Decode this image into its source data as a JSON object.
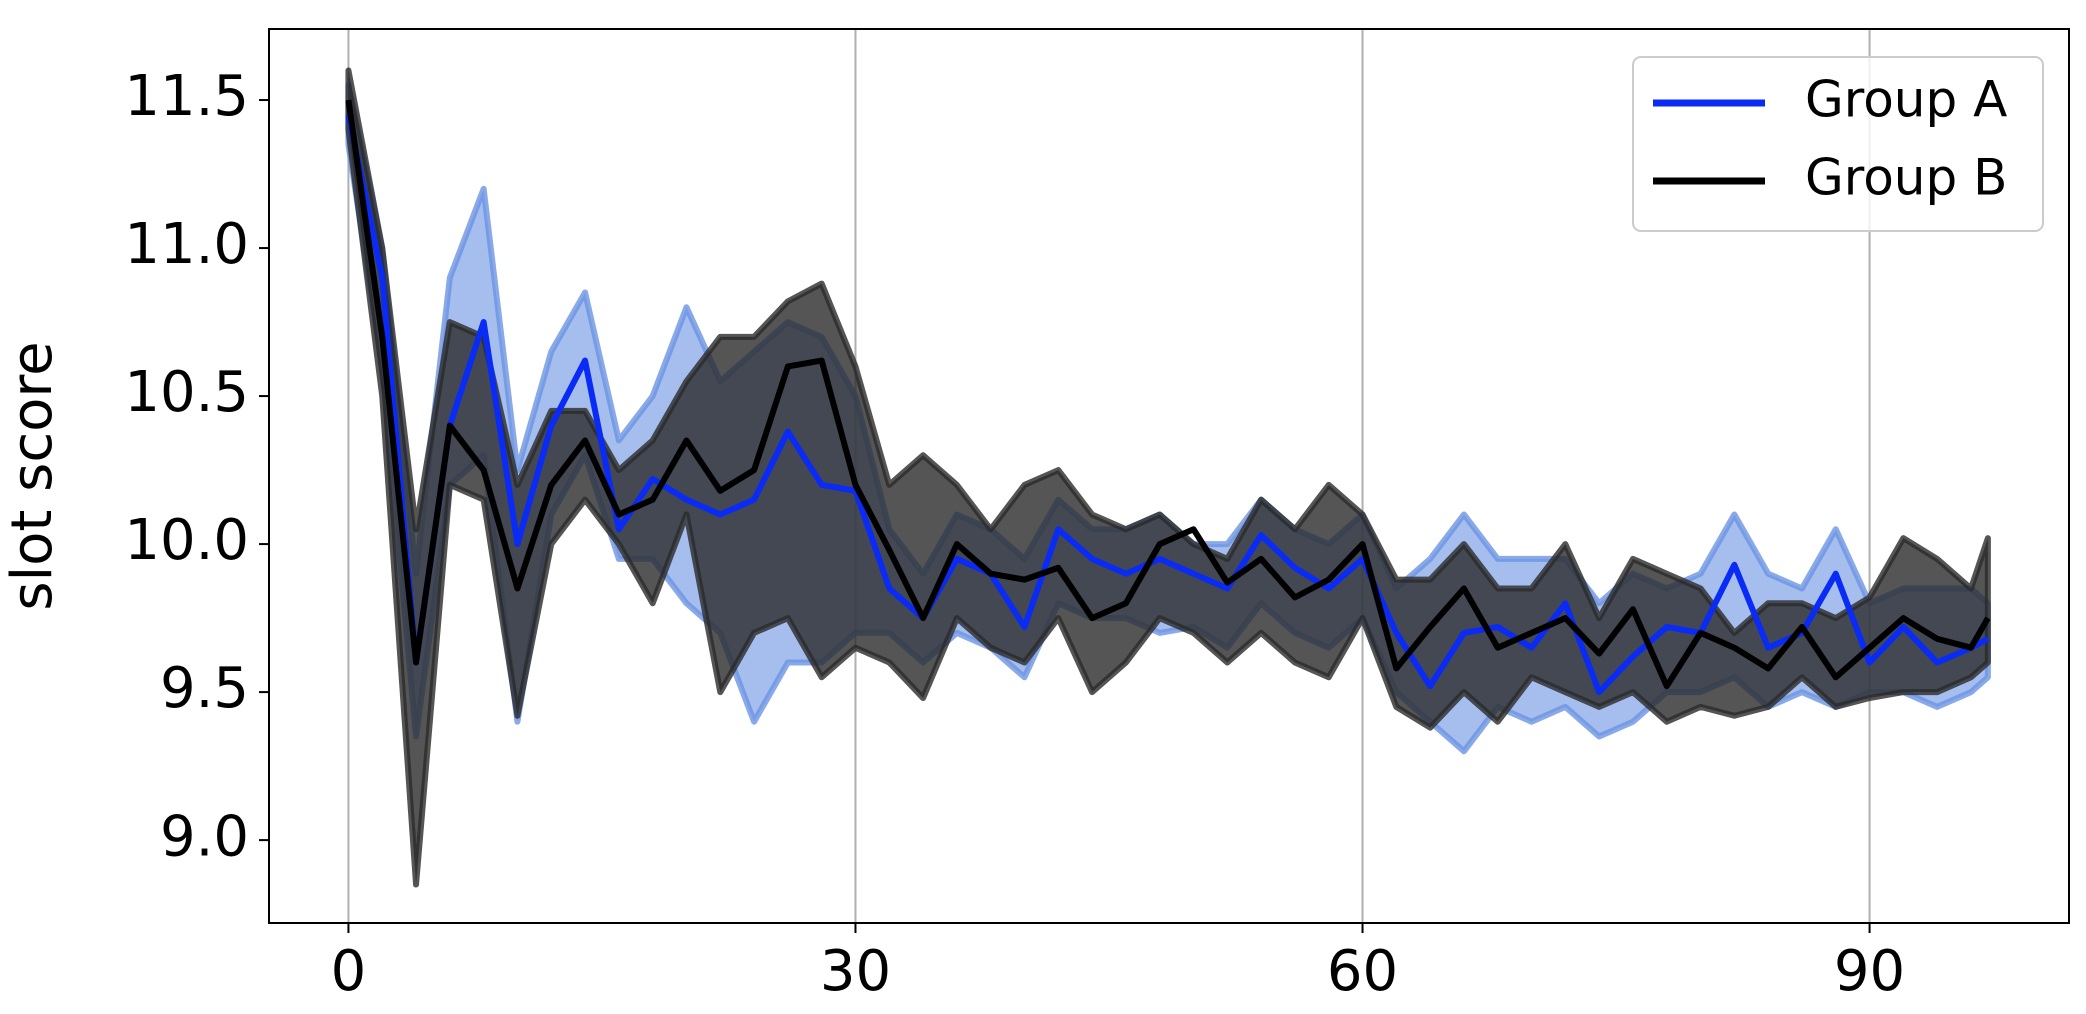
{
  "chart_data": {
    "type": "line",
    "y_label": "slot score",
    "x": [
      0,
      2,
      4,
      6,
      8,
      10,
      12,
      14,
      16,
      18,
      20,
      22,
      24,
      26,
      28,
      30,
      32,
      34,
      36,
      38,
      40,
      42,
      44,
      46,
      48,
      50,
      52,
      54,
      56,
      58,
      60,
      62,
      64,
      66,
      68,
      70,
      72,
      74,
      76,
      78,
      80,
      82,
      84,
      86,
      88,
      90,
      92,
      94,
      96,
      97
    ],
    "series": [
      {
        "name": "Group A",
        "color": "#0a2bf5",
        "band_color": "#6b93e3",
        "values": [
          11.45,
          10.9,
          9.6,
          10.4,
          10.75,
          10.0,
          10.4,
          10.62,
          10.05,
          10.22,
          10.15,
          10.1,
          10.15,
          10.38,
          10.2,
          10.18,
          9.85,
          9.75,
          9.95,
          9.9,
          9.72,
          10.05,
          9.95,
          9.9,
          9.95,
          9.9,
          9.85,
          10.03,
          9.92,
          9.85,
          9.95,
          9.7,
          9.52,
          9.7,
          9.72,
          9.65,
          9.8,
          9.5,
          9.62,
          9.72,
          9.7,
          9.93,
          9.65,
          9.7,
          9.9,
          9.6,
          9.72,
          9.6,
          9.65,
          9.68
        ],
        "lower": [
          11.35,
          10.6,
          9.35,
          10.2,
          10.3,
          9.4,
          10.1,
          10.3,
          9.95,
          9.95,
          9.8,
          9.7,
          9.4,
          9.6,
          9.6,
          9.7,
          9.7,
          9.6,
          9.7,
          9.65,
          9.55,
          9.8,
          9.75,
          9.75,
          9.7,
          9.72,
          9.65,
          9.8,
          9.7,
          9.65,
          9.75,
          9.5,
          9.4,
          9.3,
          9.45,
          9.4,
          9.45,
          9.35,
          9.4,
          9.5,
          9.5,
          9.55,
          9.45,
          9.5,
          9.45,
          9.5,
          9.5,
          9.45,
          9.5,
          9.55
        ],
        "upper": [
          11.55,
          11.0,
          9.9,
          10.9,
          11.2,
          10.25,
          10.65,
          10.85,
          10.35,
          10.5,
          10.8,
          10.55,
          10.65,
          10.75,
          10.7,
          10.5,
          10.05,
          9.9,
          10.1,
          10.05,
          9.95,
          10.15,
          10.05,
          10.05,
          10.1,
          10.0,
          10.0,
          10.15,
          10.05,
          10.0,
          10.1,
          9.85,
          9.95,
          10.1,
          9.95,
          9.95,
          9.95,
          9.8,
          9.9,
          9.85,
          9.9,
          10.1,
          9.9,
          9.85,
          10.05,
          9.8,
          9.85,
          9.85,
          9.85,
          9.8
        ]
      },
      {
        "name": "Group B",
        "color": "#000000",
        "band_color": "#2a2a2a",
        "values": [
          11.5,
          10.7,
          9.6,
          10.4,
          10.25,
          9.85,
          10.2,
          10.35,
          10.1,
          10.15,
          10.35,
          10.18,
          10.25,
          10.6,
          10.62,
          10.2,
          9.98,
          9.75,
          10.0,
          9.9,
          9.88,
          9.92,
          9.75,
          9.8,
          10.0,
          10.05,
          9.87,
          9.95,
          9.82,
          9.88,
          10.0,
          9.58,
          9.72,
          9.85,
          9.65,
          9.7,
          9.75,
          9.63,
          9.78,
          9.52,
          9.7,
          9.65,
          9.58,
          9.72,
          9.55,
          9.65,
          9.75,
          9.68,
          9.65,
          9.75
        ],
        "lower": [
          11.4,
          10.5,
          8.85,
          10.2,
          10.15,
          9.42,
          10.0,
          10.15,
          10.0,
          9.8,
          10.1,
          9.5,
          9.7,
          9.75,
          9.55,
          9.65,
          9.6,
          9.48,
          9.75,
          9.65,
          9.6,
          9.75,
          9.5,
          9.6,
          9.75,
          9.7,
          9.6,
          9.7,
          9.6,
          9.55,
          9.75,
          9.45,
          9.38,
          9.5,
          9.4,
          9.55,
          9.5,
          9.45,
          9.5,
          9.4,
          9.45,
          9.42,
          9.45,
          9.55,
          9.45,
          9.48,
          9.5,
          9.5,
          9.55,
          9.6
        ],
        "upper": [
          11.6,
          11.0,
          10.05,
          10.75,
          10.7,
          10.2,
          10.45,
          10.45,
          10.25,
          10.35,
          10.55,
          10.7,
          10.7,
          10.82,
          10.88,
          10.6,
          10.2,
          10.3,
          10.2,
          10.05,
          10.2,
          10.25,
          10.1,
          10.05,
          10.1,
          10.0,
          9.95,
          10.15,
          10.05,
          10.2,
          10.1,
          9.88,
          9.88,
          10.0,
          9.85,
          9.85,
          10.0,
          9.75,
          9.95,
          9.9,
          9.85,
          9.7,
          9.8,
          9.8,
          9.75,
          9.82,
          10.02,
          9.95,
          9.85,
          10.02
        ]
      }
    ],
    "xlim": [
      -4.7,
      101.8
    ],
    "xticks": [
      0,
      30,
      60,
      90
    ],
    "ylim": [
      8.72,
      11.74
    ],
    "yticks": [
      {
        "value": 9,
        "label": "9.0"
      },
      9.5,
      {
        "value": 10,
        "label": "10.0"
      },
      10.5,
      {
        "value": 11,
        "label": "11.0"
      },
      11.5
    ],
    "grid": "x",
    "legend": "upper right"
  }
}
